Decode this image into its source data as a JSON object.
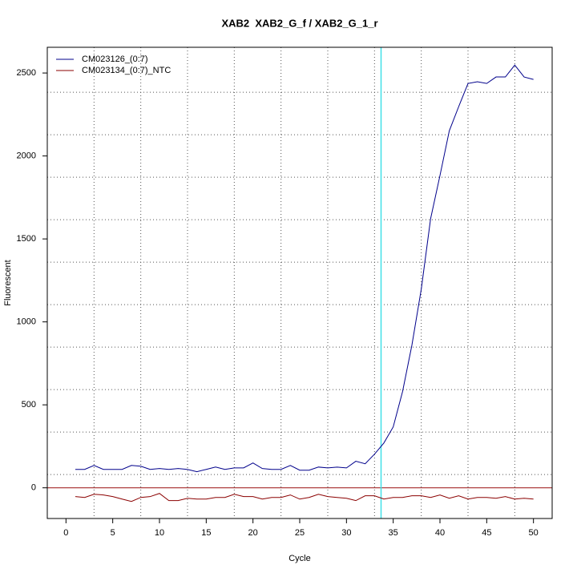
{
  "chart_data": {
    "type": "line",
    "title": "XAB2  XAB2_G_f / XAB2_G_1_r",
    "x_label": "Cycle",
    "y_label": "Fluorescent",
    "x": [
      1,
      2,
      3,
      4,
      5,
      6,
      7,
      8,
      9,
      10,
      11,
      12,
      13,
      14,
      15,
      16,
      17,
      18,
      19,
      20,
      21,
      22,
      23,
      24,
      25,
      26,
      27,
      28,
      29,
      30,
      31,
      32,
      33,
      34,
      35,
      36,
      37,
      38,
      39,
      40,
      41,
      42,
      43,
      44,
      45,
      46,
      47,
      48,
      49,
      50
    ],
    "series": [
      {
        "name": "CM023126_(0:7)",
        "color": "#00008b",
        "values": [
          111,
          111,
          135,
          111,
          111,
          111,
          135,
          130,
          111,
          116,
          111,
          116,
          111,
          97,
          111,
          125,
          111,
          120,
          120,
          150,
          116,
          111,
          111,
          135,
          106,
          106,
          125,
          120,
          125,
          120,
          160,
          145,
          203,
          270,
          367,
          580,
          860,
          1197,
          1622,
          1882,
          2152,
          2297,
          2437,
          2447,
          2437,
          2476,
          2476,
          2548,
          2476,
          2461
        ]
      },
      {
        "name": "CM023134_(0:7)_NTC",
        "color": "#8b0000",
        "values": [
          -53,
          -58,
          -39,
          -43,
          -53,
          -68,
          -82,
          -58,
          -53,
          -34,
          -77,
          -77,
          -63,
          -68,
          -68,
          -58,
          -58,
          -39,
          -53,
          -53,
          -68,
          -58,
          -58,
          -43,
          -68,
          -58,
          -39,
          -53,
          -58,
          -63,
          -77,
          -48,
          -48,
          -68,
          -58,
          -58,
          -48,
          -48,
          -58,
          -43,
          -63,
          -48,
          -68,
          -58,
          -58,
          -63,
          -53,
          -68,
          -63,
          -68
        ]
      }
    ],
    "xlim": [
      -2,
      52
    ],
    "ylim": [
      -185,
      2655
    ],
    "xticks": [
      0,
      5,
      10,
      15,
      20,
      25,
      30,
      35,
      40,
      45,
      50
    ],
    "yticks": [
      0,
      500,
      1000,
      1500,
      2000,
      2500
    ],
    "grid_x": [
      3,
      8,
      13,
      18,
      23,
      28,
      33,
      38,
      43,
      48
    ],
    "grid_y": [
      80,
      336,
      592,
      848,
      1104,
      1360,
      1616,
      1872,
      2128,
      2384
    ],
    "vline": {
      "value": 33.7,
      "color": "#40e0e8"
    },
    "hline": {
      "value": 0,
      "color": "#a52a2a"
    },
    "legend": "top-left"
  }
}
